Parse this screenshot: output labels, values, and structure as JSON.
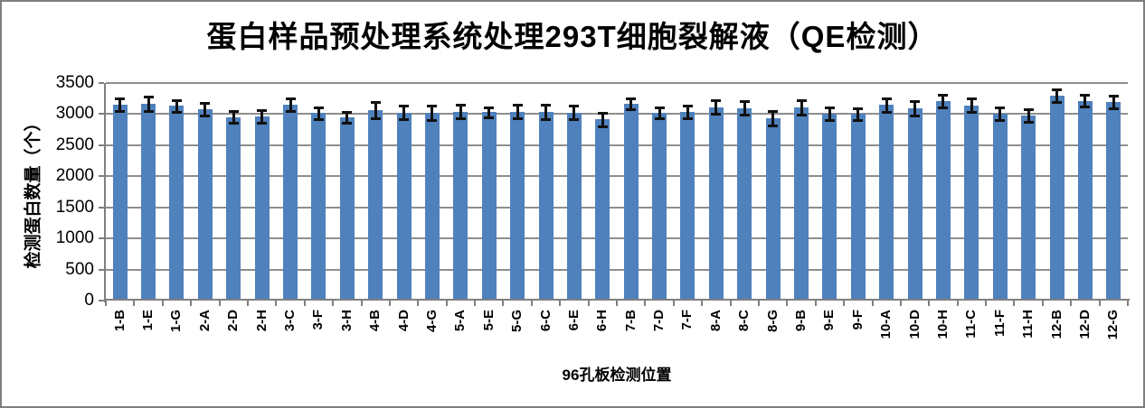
{
  "chart_data": {
    "type": "bar",
    "title": "蛋白样品预处理系统处理293T细胞裂解液（QE检测）",
    "xlabel": "96孔板检测位置",
    "ylabel": "检测蛋白数量（个）",
    "ylim": [
      0,
      3500
    ],
    "ytick_step": 500,
    "ytick_labels": [
      "0",
      "500",
      "1000",
      "1500",
      "2000",
      "2500",
      "3000",
      "3500"
    ],
    "grid": true,
    "legend": "none",
    "categories": [
      "1-B",
      "1-E",
      "1-G",
      "2-A",
      "2-D",
      "2-H",
      "3-C",
      "3-F",
      "3-H",
      "4-B",
      "4-D",
      "4-G",
      "5-A",
      "5-E",
      "5-G",
      "6-C",
      "6-E",
      "6-H",
      "7-B",
      "7-D",
      "7-F",
      "8-A",
      "8-C",
      "8-G",
      "9-B",
      "9-E",
      "9-F",
      "10-A",
      "10-D",
      "10-H",
      "11-C",
      "11-F",
      "11-H",
      "12-B",
      "12-D",
      "12-G"
    ],
    "values": [
      3150,
      3160,
      3130,
      3080,
      2955,
      2965,
      3155,
      3015,
      2950,
      3070,
      3025,
      3020,
      3040,
      3030,
      3040,
      3035,
      3025,
      2915,
      3170,
      3020,
      3035,
      3110,
      3095,
      2930,
      3110,
      3005,
      3000,
      3145,
      3090,
      3210,
      3140,
      3005,
      2975,
      3300,
      3215,
      3200
    ],
    "errors": [
      105,
      115,
      100,
      100,
      90,
      100,
      100,
      100,
      90,
      130,
      110,
      115,
      110,
      85,
      105,
      115,
      105,
      105,
      90,
      90,
      105,
      110,
      110,
      115,
      120,
      105,
      95,
      110,
      115,
      100,
      110,
      100,
      100,
      100,
      90,
      100
    ],
    "colors": {
      "bar": "#4F81BD",
      "gridline": "#8E8E8E",
      "axis": "#808080",
      "error_bar": "#111111",
      "frame_border": "#7F7F7F",
      "background": "#FFFFFF",
      "text": "#000000"
    }
  }
}
